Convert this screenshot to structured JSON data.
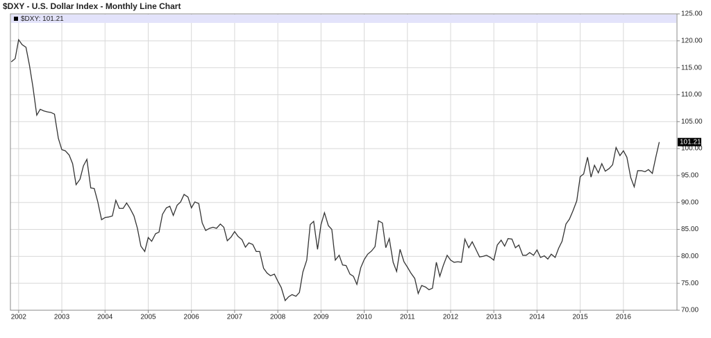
{
  "chart_data": {
    "type": "line",
    "title": "$DXY - U.S. Dollar Index - Monthly Line Chart",
    "legend": "top-left",
    "grid": true,
    "xlim": [
      2001.81,
      2017.24
    ],
    "xticks": [
      2002,
      2003,
      2004,
      2005,
      2006,
      2007,
      2008,
      2009,
      2010,
      2011,
      2012,
      2013,
      2014,
      2015,
      2016
    ],
    "ylim": [
      70,
      125
    ],
    "yticks": [
      {
        "value": 70,
        "label": "70.00"
      },
      {
        "value": 75,
        "label": "75.00"
      },
      {
        "value": 80,
        "label": "80.00"
      },
      {
        "value": 85,
        "label": "85.00"
      },
      {
        "value": 90,
        "label": "90.00"
      },
      {
        "value": 95,
        "label": "95.00"
      },
      {
        "value": 100,
        "label": "100.00"
      },
      {
        "value": 105,
        "label": "105.00"
      },
      {
        "value": 110,
        "label": "110.00"
      },
      {
        "value": 115,
        "label": "115.00"
      },
      {
        "value": 120,
        "label": "120.00"
      },
      {
        "value": 125,
        "label": "125.00"
      }
    ],
    "x": [
      2001.83,
      2001.92,
      2002.0,
      2002.08,
      2002.17,
      2002.25,
      2002.33,
      2002.42,
      2002.5,
      2002.58,
      2002.67,
      2002.75,
      2002.83,
      2002.92,
      2003.0,
      2003.08,
      2003.17,
      2003.25,
      2003.33,
      2003.42,
      2003.5,
      2003.58,
      2003.67,
      2003.75,
      2003.83,
      2003.92,
      2004.0,
      2004.08,
      2004.17,
      2004.25,
      2004.33,
      2004.42,
      2004.5,
      2004.58,
      2004.67,
      2004.75,
      2004.83,
      2004.92,
      2005.0,
      2005.08,
      2005.17,
      2005.25,
      2005.33,
      2005.42,
      2005.5,
      2005.58,
      2005.67,
      2005.75,
      2005.83,
      2005.92,
      2006.0,
      2006.08,
      2006.17,
      2006.25,
      2006.33,
      2006.42,
      2006.5,
      2006.58,
      2006.67,
      2006.75,
      2006.83,
      2006.92,
      2007.0,
      2007.08,
      2007.17,
      2007.25,
      2007.33,
      2007.42,
      2007.5,
      2007.58,
      2007.67,
      2007.75,
      2007.83,
      2007.92,
      2008.0,
      2008.08,
      2008.17,
      2008.25,
      2008.33,
      2008.42,
      2008.5,
      2008.58,
      2008.67,
      2008.75,
      2008.83,
      2008.92,
      2009.0,
      2009.08,
      2009.17,
      2009.25,
      2009.33,
      2009.42,
      2009.5,
      2009.58,
      2009.67,
      2009.75,
      2009.83,
      2009.92,
      2010.0,
      2010.08,
      2010.17,
      2010.25,
      2010.33,
      2010.42,
      2010.5,
      2010.58,
      2010.67,
      2010.75,
      2010.83,
      2010.92,
      2011.0,
      2011.08,
      2011.17,
      2011.25,
      2011.33,
      2011.42,
      2011.5,
      2011.58,
      2011.67,
      2011.75,
      2011.83,
      2011.92,
      2012.0,
      2012.08,
      2012.17,
      2012.25,
      2012.33,
      2012.42,
      2012.5,
      2012.58,
      2012.67,
      2012.75,
      2012.83,
      2012.92,
      2013.0,
      2013.08,
      2013.17,
      2013.25,
      2013.33,
      2013.42,
      2013.5,
      2013.58,
      2013.67,
      2013.75,
      2013.83,
      2013.92,
      2014.0,
      2014.08,
      2014.17,
      2014.25,
      2014.33,
      2014.42,
      2014.5,
      2014.58,
      2014.67,
      2014.75,
      2014.83,
      2014.92,
      2015.0,
      2015.08,
      2015.17,
      2015.25,
      2015.33,
      2015.42,
      2015.5,
      2015.58,
      2015.67,
      2015.75,
      2015.83,
      2015.92,
      2016.0,
      2016.08,
      2016.17,
      2016.25,
      2016.33,
      2016.42,
      2016.5,
      2016.58,
      2016.67,
      2016.75,
      2016.83
    ],
    "series": [
      {
        "name": "$DXY: 101.21",
        "color": "#333333",
        "values": [
          116.1,
          116.7,
          120.2,
          119.3,
          118.8,
          115.5,
          111.5,
          106.2,
          107.3,
          107.0,
          106.8,
          106.7,
          106.4,
          101.9,
          99.8,
          99.6,
          98.8,
          97.2,
          93.3,
          94.3,
          96.8,
          98.0,
          92.7,
          92.6,
          90.2,
          86.8,
          87.2,
          87.3,
          87.5,
          90.4,
          88.9,
          88.9,
          89.9,
          88.9,
          87.5,
          85.2,
          81.9,
          80.9,
          83.5,
          82.8,
          84.2,
          84.5,
          87.8,
          89.0,
          89.3,
          87.6,
          89.5,
          90.1,
          91.5,
          91.0,
          89.0,
          90.1,
          89.8,
          86.2,
          84.8,
          85.2,
          85.4,
          85.2,
          86.0,
          85.4,
          82.9,
          83.6,
          84.6,
          83.7,
          83.1,
          81.7,
          82.5,
          82.2,
          80.9,
          80.9,
          77.8,
          76.9,
          76.4,
          76.7,
          75.4,
          74.2,
          71.8,
          72.5,
          72.9,
          72.6,
          73.3,
          77.1,
          79.3,
          85.9,
          86.5,
          81.3,
          85.9,
          88.1,
          85.7,
          85.0,
          79.3,
          80.2,
          78.4,
          78.3,
          76.7,
          76.3,
          74.8,
          77.9,
          79.4,
          80.4,
          81.0,
          81.8,
          86.6,
          86.2,
          81.6,
          83.3,
          78.9,
          77.2,
          81.3,
          79.0,
          78.0,
          76.9,
          75.9,
          73.1,
          74.6,
          74.3,
          73.8,
          74.1,
          78.9,
          76.3,
          78.3,
          80.2,
          79.3,
          78.9,
          79.0,
          78.9,
          83.2,
          81.6,
          82.7,
          81.4,
          79.9,
          80.0,
          80.2,
          79.8,
          79.3,
          82.1,
          83.0,
          81.9,
          83.3,
          83.2,
          81.6,
          82.1,
          80.2,
          80.2,
          80.7,
          80.2,
          81.2,
          79.8,
          80.1,
          79.5,
          80.4,
          79.8,
          81.5,
          82.8,
          86.0,
          86.9,
          88.4,
          90.3,
          94.8,
          95.3,
          98.4,
          94.7,
          96.9,
          95.5,
          97.2,
          95.8,
          96.3,
          97.0,
          100.2,
          98.7,
          99.6,
          98.4,
          94.6,
          92.9,
          95.9,
          95.9,
          95.7,
          96.1,
          95.4,
          98.4,
          101.21
        ]
      }
    ]
  }
}
